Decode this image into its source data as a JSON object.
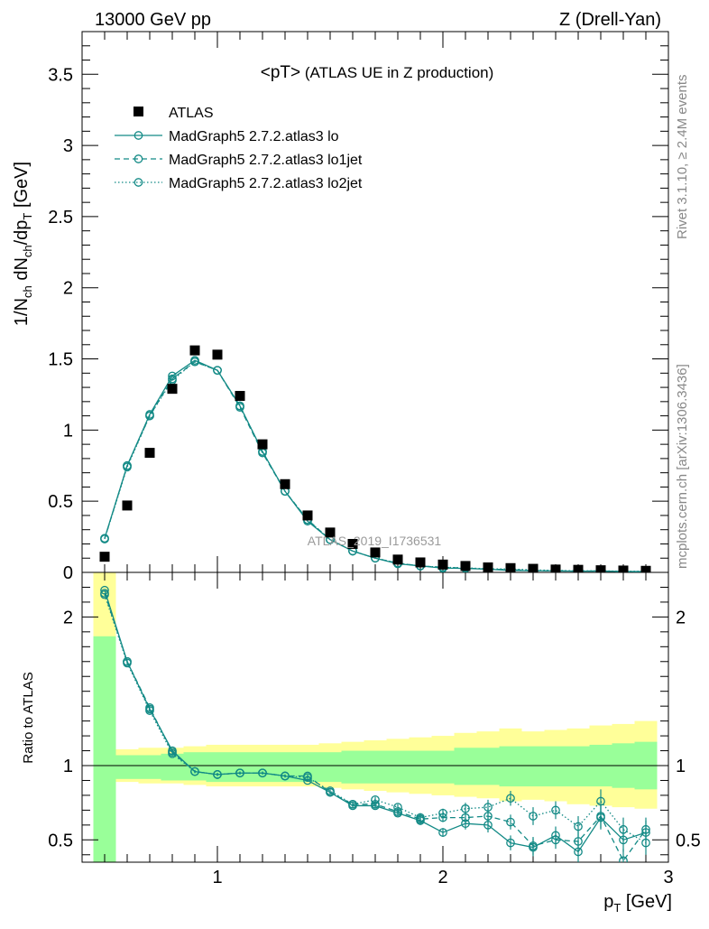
{
  "header": {
    "left": "13000 GeV pp",
    "right": "Z (Drell-Yan)"
  },
  "side_labels": {
    "rivet": "Rivet 3.1.10, ≥ 2.4M events",
    "mcplots": "mcplots.cern.ch [arXiv:1306.3436]"
  },
  "watermark": "ATLAS_2019_I1736531",
  "main_title": {
    "prefix": "<pT>",
    "suffix": " (ATLAS UE in Z production)"
  },
  "y_label_main": {
    "part1": "1/N",
    "sub1": "ch",
    "part2": " dN",
    "sub2": "ch",
    "part3": "/dp",
    "sub3": "T",
    "unit": " [GeV]"
  },
  "y_label_ratio": "Ratio to ATLAS",
  "x_label": {
    "p": "p",
    "sub": "T",
    "unit": " [GeV]"
  },
  "legend": [
    {
      "label": "ATLAS",
      "style": "data"
    },
    {
      "label": "MadGraph5 2.7.2.atlas3 lo",
      "style": "solid"
    },
    {
      "label": "MadGraph5 2.7.2.atlas3 lo1jet",
      "style": "dashed"
    },
    {
      "label": "MadGraph5 2.7.2.atlas3 lo2jet",
      "style": "dotted"
    }
  ],
  "colors": {
    "mc": "#138a86",
    "data": "#000000",
    "band_inner": "#99ff99",
    "band_outer": "#ffff99"
  },
  "chart_data": [
    {
      "type": "scatter",
      "xlim": [
        0.4,
        3.0
      ],
      "ylim": [
        0,
        3.8
      ],
      "xticks": [
        "1",
        "2",
        "3"
      ],
      "yticks": [
        "0",
        "0.5",
        "1",
        "1.5",
        "2",
        "2.5",
        "3",
        "3.5"
      ],
      "x": [
        0.5,
        0.6,
        0.7,
        0.8,
        0.9,
        1.0,
        1.1,
        1.2,
        1.3,
        1.4,
        1.5,
        1.6,
        1.7,
        1.8,
        1.9,
        2.0,
        2.1,
        2.2,
        2.3,
        2.4,
        2.5,
        2.6,
        2.7,
        2.8,
        2.9
      ],
      "series": [
        {
          "name": "ATLAS",
          "values": [
            0.11,
            0.47,
            0.84,
            1.29,
            1.56,
            1.53,
            1.24,
            0.9,
            0.62,
            0.4,
            0.28,
            0.2,
            0.14,
            0.09,
            0.07,
            0.055,
            0.045,
            0.035,
            0.03,
            0.025,
            0.02,
            0.018,
            0.015,
            0.013,
            0.011
          ]
        },
        {
          "name": "MadGraph5 2.7.2.atlas3 lo",
          "values": [
            0.24,
            0.75,
            1.11,
            1.38,
            1.49,
            1.42,
            1.17,
            0.85,
            0.57,
            0.36,
            0.23,
            0.15,
            0.1,
            0.06,
            0.045,
            0.03,
            0.028,
            0.022,
            0.014,
            0.012,
            0.011,
            0.008,
            0.01,
            0.006,
            0.006
          ]
        },
        {
          "name": "MadGraph5 2.7.2.atlas3 lo1jet",
          "values": [
            0.235,
            0.75,
            1.1,
            1.36,
            1.48,
            1.42,
            1.16,
            0.84,
            0.57,
            0.37,
            0.23,
            0.15,
            0.1,
            0.065,
            0.045,
            0.036,
            0.03,
            0.023,
            0.019,
            0.013,
            0.01,
            0.009,
            0.01,
            0.005,
            0.006
          ]
        },
        {
          "name": "MadGraph5 2.7.2.atlas3 lo2jet",
          "values": [
            0.235,
            0.74,
            1.1,
            1.35,
            1.48,
            1.42,
            1.17,
            0.85,
            0.57,
            0.37,
            0.23,
            0.15,
            0.1,
            0.065,
            0.045,
            0.036,
            0.032,
            0.025,
            0.024,
            0.017,
            0.014,
            0.011,
            0.011,
            0.008,
            0.008
          ]
        }
      ]
    },
    {
      "type": "scatter",
      "xlim": [
        0.4,
        3.0
      ],
      "ylim": [
        0.35,
        2.3
      ],
      "xticks": [
        "1",
        "2",
        "3"
      ],
      "yticks": [
        "0.5",
        "1",
        "2"
      ],
      "x": [
        0.5,
        0.6,
        0.7,
        0.8,
        0.9,
        1.0,
        1.1,
        1.2,
        1.3,
        1.4,
        1.5,
        1.6,
        1.7,
        1.8,
        1.9,
        2.0,
        2.1,
        2.2,
        2.3,
        2.4,
        2.5,
        2.6,
        2.7,
        2.8,
        2.9
      ],
      "reference": 1,
      "bins": [
        [
          0.45,
          0.55
        ],
        [
          0.55,
          0.65
        ],
        [
          0.65,
          0.75
        ],
        [
          0.75,
          0.85
        ],
        [
          0.85,
          0.95
        ],
        [
          0.95,
          1.05
        ],
        [
          1.05,
          1.15
        ],
        [
          1.15,
          1.25
        ],
        [
          1.25,
          1.35
        ],
        [
          1.35,
          1.45
        ],
        [
          1.45,
          1.55
        ],
        [
          1.55,
          1.65
        ],
        [
          1.65,
          1.75
        ],
        [
          1.75,
          1.85
        ],
        [
          1.85,
          1.95
        ],
        [
          1.95,
          2.05
        ],
        [
          2.05,
          2.15
        ],
        [
          2.15,
          2.25
        ],
        [
          2.25,
          2.35
        ],
        [
          2.35,
          2.45
        ],
        [
          2.45,
          2.55
        ],
        [
          2.55,
          2.65
        ],
        [
          2.65,
          2.75
        ],
        [
          2.75,
          2.85
        ],
        [
          2.85,
          2.95
        ]
      ],
      "band_inner": [
        [
          0.35,
          1.87
        ],
        [
          0.91,
          1.07
        ],
        [
          0.91,
          1.07
        ],
        [
          0.9,
          1.08
        ],
        [
          0.9,
          1.09
        ],
        [
          0.89,
          1.09
        ],
        [
          0.89,
          1.09
        ],
        [
          0.89,
          1.09
        ],
        [
          0.89,
          1.09
        ],
        [
          0.89,
          1.09
        ],
        [
          0.89,
          1.09
        ],
        [
          0.88,
          1.1
        ],
        [
          0.88,
          1.1
        ],
        [
          0.88,
          1.1
        ],
        [
          0.88,
          1.1
        ],
        [
          0.88,
          1.1
        ],
        [
          0.87,
          1.12
        ],
        [
          0.87,
          1.12
        ],
        [
          0.86,
          1.13
        ],
        [
          0.86,
          1.13
        ],
        [
          0.86,
          1.13
        ],
        [
          0.86,
          1.13
        ],
        [
          0.86,
          1.14
        ],
        [
          0.85,
          1.15
        ],
        [
          0.84,
          1.16
        ]
      ],
      "band_outer": [
        [
          0.35,
          2.3
        ],
        [
          0.89,
          1.11
        ],
        [
          0.88,
          1.12
        ],
        [
          0.88,
          1.12
        ],
        [
          0.87,
          1.13
        ],
        [
          0.86,
          1.14
        ],
        [
          0.86,
          1.14
        ],
        [
          0.86,
          1.14
        ],
        [
          0.86,
          1.14
        ],
        [
          0.86,
          1.14
        ],
        [
          0.85,
          1.15
        ],
        [
          0.84,
          1.16
        ],
        [
          0.83,
          1.17
        ],
        [
          0.82,
          1.18
        ],
        [
          0.81,
          1.19
        ],
        [
          0.8,
          1.2
        ],
        [
          0.79,
          1.22
        ],
        [
          0.78,
          1.23
        ],
        [
          0.76,
          1.25
        ],
        [
          0.77,
          1.23
        ],
        [
          0.76,
          1.24
        ],
        [
          0.74,
          1.25
        ],
        [
          0.73,
          1.27
        ],
        [
          0.72,
          1.28
        ],
        [
          0.71,
          1.3
        ]
      ],
      "series": [
        {
          "name": "MadGraph5 2.7.2.atlas3 lo",
          "values": [
            2.18,
            1.7,
            1.38,
            1.1,
            0.96,
            0.94,
            0.95,
            0.95,
            0.93,
            0.9,
            0.82,
            0.73,
            0.73,
            0.68,
            0.63,
            0.55,
            0.61,
            0.6,
            0.48,
            0.45,
            0.53,
            0.42,
            0.65,
            0.5,
            0.55
          ],
          "err": [
            0,
            0.01,
            0.01,
            0.01,
            0.01,
            0.01,
            0.01,
            0.01,
            0.01,
            0.01,
            0.01,
            0.015,
            0.02,
            0.02,
            0.03,
            0.03,
            0.04,
            0.05,
            0.05,
            0.06,
            0.06,
            0.07,
            0.08,
            0.08,
            0.08
          ]
        },
        {
          "name": "MadGraph5 2.7.2.atlas3 lo1jet",
          "values": [
            2.16,
            1.7,
            1.39,
            1.09,
            0.96,
            0.94,
            0.95,
            0.95,
            0.93,
            0.93,
            0.82,
            0.74,
            0.74,
            0.69,
            0.64,
            0.65,
            0.65,
            0.66,
            0.62,
            0.46,
            0.5,
            0.49,
            0.66,
            0.36,
            0.57
          ],
          "err": [
            0,
            0.01,
            0.01,
            0.01,
            0.01,
            0.01,
            0.01,
            0.01,
            0.01,
            0.01,
            0.01,
            0.015,
            0.02,
            0.02,
            0.03,
            0.03,
            0.04,
            0.05,
            0.05,
            0.06,
            0.06,
            0.07,
            0.08,
            0.08,
            0.08
          ]
        },
        {
          "name": "MadGraph5 2.7.2.atlas3 lo2jet",
          "values": [
            2.15,
            1.69,
            1.37,
            1.08,
            0.96,
            0.94,
            0.95,
            0.95,
            0.93,
            0.92,
            0.83,
            0.74,
            0.77,
            0.72,
            0.65,
            0.68,
            0.71,
            0.72,
            0.78,
            0.66,
            0.7,
            0.59,
            0.76,
            0.57,
            0.48
          ],
          "err": [
            0,
            0.01,
            0.01,
            0.01,
            0.01,
            0.01,
            0.01,
            0.01,
            0.01,
            0.01,
            0.01,
            0.015,
            0.02,
            0.02,
            0.03,
            0.03,
            0.04,
            0.05,
            0.05,
            0.06,
            0.06,
            0.07,
            0.08,
            0.08,
            0.08
          ]
        }
      ]
    }
  ]
}
